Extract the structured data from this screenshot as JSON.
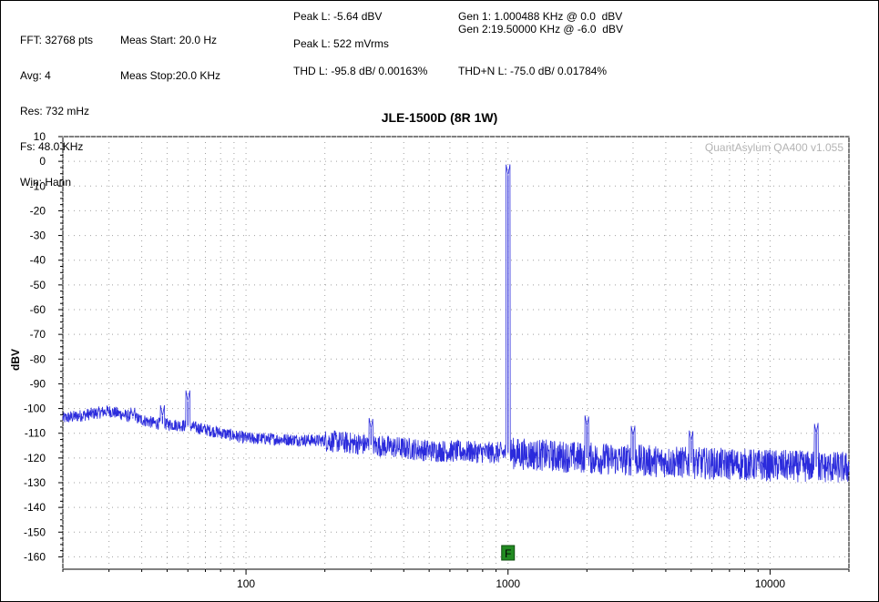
{
  "header": {
    "col1": [
      "FFT: 32768 pts",
      "Avg: 4",
      "Res: 732 mHz",
      "Fs: 48.0 KHz",
      "Win: Hann"
    ],
    "col2": [
      "Meas Start: 20.0 Hz",
      "Meas Stop:20.0 KHz"
    ],
    "col3": [
      "Peak L: -5.64 dBV",
      "Peak L: 522 mVrms",
      "THD L: -95.8 dB/ 0.00163%"
    ],
    "col4": [
      "Gen 1: 1.000488 KHz @ 0.0  dBV",
      "Gen 2:19.50000 KHz @ -6.0  dBV",
      "THD+N L: -75.0 dB/ 0.01784%"
    ]
  },
  "watermark": "QuantAsylum QA400 v1.055",
  "marker_label": "F",
  "colors": {
    "trace": "#2b2bdc",
    "grid": "#a0a0a0",
    "marker": "#228b22"
  },
  "chart_data": {
    "type": "line",
    "title": "JLE-1500D (8R 1W)",
    "xlabel": "",
    "ylabel": "dBV",
    "xscale": "log",
    "xlim": [
      20,
      20000
    ],
    "ylim": [
      -165,
      10
    ],
    "xticks": [
      100,
      1000,
      10000
    ],
    "xtick_labels": [
      "100",
      "1000",
      "10000"
    ],
    "yticks": [
      10,
      0,
      -10,
      -20,
      -30,
      -40,
      -50,
      -60,
      -70,
      -80,
      -90,
      -100,
      -110,
      -120,
      -130,
      -140,
      -150,
      -160
    ],
    "grid": true,
    "marker": {
      "label": "F",
      "x": 1000
    },
    "series": [
      {
        "noise_floor": [
          [
            20,
            -104
          ],
          [
            30,
            -101
          ],
          [
            45,
            -106
          ],
          [
            60,
            -107
          ],
          [
            100,
            -112
          ],
          [
            200,
            -113
          ],
          [
            500,
            -117
          ],
          [
            1000,
            -118
          ],
          [
            2000,
            -120
          ],
          [
            5000,
            -122
          ],
          [
            10000,
            -123
          ],
          [
            20000,
            -124
          ]
        ],
        "peaks": [
          [
            1000,
            -5.6
          ],
          [
            60,
            -97
          ],
          [
            300,
            -108
          ],
          [
            2000,
            -107
          ],
          [
            3000,
            -111
          ],
          [
            5000,
            -113
          ],
          [
            15000,
            -110
          ],
          [
            37,
            -104
          ],
          [
            48,
            -103
          ]
        ]
      }
    ]
  }
}
